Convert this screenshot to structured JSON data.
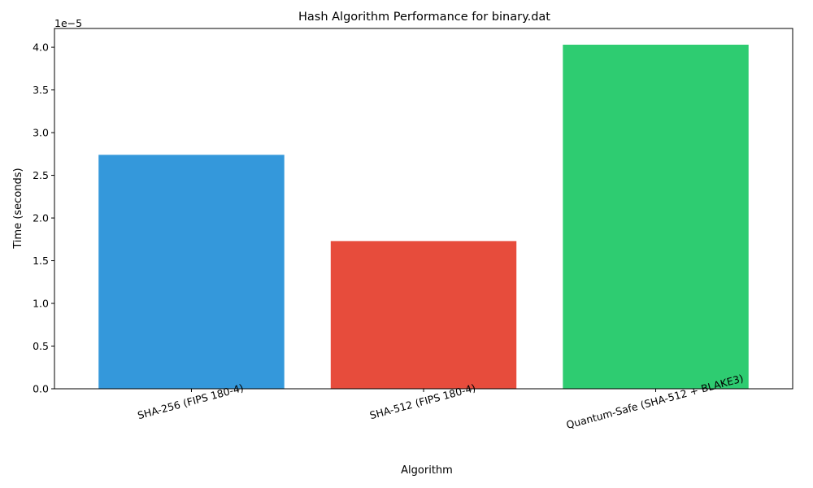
{
  "chart_data": {
    "type": "bar",
    "title": "Hash Algorithm Performance for binary.dat",
    "xlabel": "Algorithm",
    "ylabel": "Time (seconds)",
    "offset_label": "1e−5",
    "categories": [
      "SHA-256 (FIPS 180-4)",
      "SHA-512 (FIPS 180-4)",
      "Quantum-Safe (SHA-512 + BLAKE3)"
    ],
    "values": [
      2.74e-05,
      1.73e-05,
      4.03e-05
    ],
    "colors": [
      "#3498db",
      "#e74c3c",
      "#2ecc71"
    ],
    "ylim": [
      0,
      4.22e-05
    ],
    "yticks": [
      0,
      5e-06,
      1e-05,
      1.5e-05,
      2e-05,
      2.5e-05,
      3e-05,
      3.5e-05,
      4e-05
    ],
    "ytick_labels": [
      "0.0",
      "0.5",
      "1.0",
      "1.5",
      "2.0",
      "2.5",
      "3.0",
      "3.5",
      "4.0"
    ],
    "grid": false,
    "legend": false
  }
}
